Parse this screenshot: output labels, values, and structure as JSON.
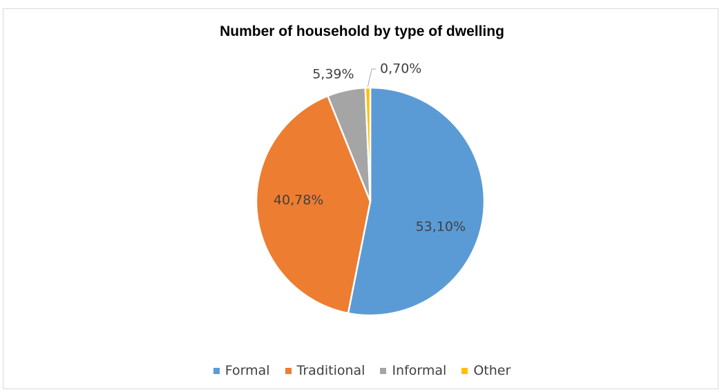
{
  "chart_data": {
    "type": "pie",
    "title": "Number of household by type of dwelling",
    "categories": [
      "Formal",
      "Traditional",
      "Informal",
      "Other"
    ],
    "values": [
      53.1,
      40.78,
      5.39,
      0.7
    ],
    "data_labels": [
      "53,10%",
      "40,78%",
      "5,39%",
      "0,70%"
    ],
    "colors": [
      "#5B9BD5",
      "#ED7D31",
      "#A5A5A5",
      "#FFC000"
    ],
    "legend_position": "bottom"
  }
}
